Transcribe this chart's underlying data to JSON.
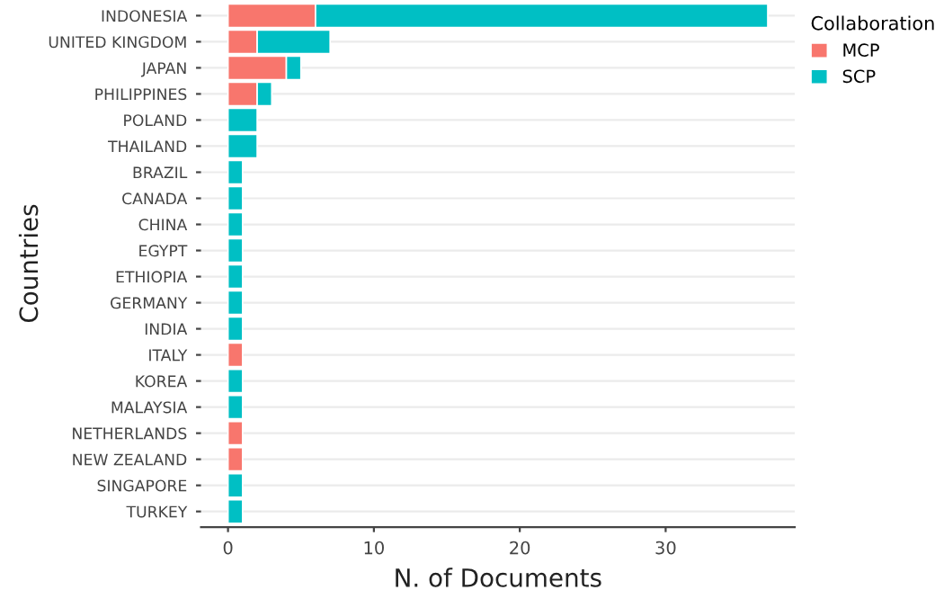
{
  "chart_data": {
    "type": "bar",
    "orientation": "horizontal",
    "stacked": true,
    "xlabel": "N. of Documents",
    "ylabel": "Countries",
    "legend_title": "Collaboration",
    "legend": "right",
    "grid": "y",
    "categories": [
      "INDONESIA",
      "UNITED KINGDOM",
      "JAPAN",
      "PHILIPPINES",
      "POLAND",
      "THAILAND",
      "BRAZIL",
      "CANADA",
      "CHINA",
      "EGYPT",
      "ETHIOPIA",
      "GERMANY",
      "INDIA",
      "ITALY",
      "KOREA",
      "MALAYSIA",
      "NETHERLANDS",
      "NEW ZEALAND",
      "SINGAPORE",
      "TURKEY"
    ],
    "series": [
      {
        "name": "MCP",
        "color": "#f8766d",
        "values": [
          6,
          2,
          4,
          2,
          null,
          null,
          null,
          null,
          null,
          null,
          null,
          null,
          null,
          1,
          null,
          null,
          1,
          1,
          null,
          null
        ]
      },
      {
        "name": "SCP",
        "color": "#00bfc4",
        "values": [
          31,
          5,
          1,
          1,
          2,
          2,
          1,
          1,
          1,
          1,
          1,
          1,
          1,
          null,
          1,
          1,
          null,
          null,
          1,
          1
        ]
      }
    ],
    "xlim": [
      -1.85,
      38.85
    ],
    "xticks": [
      0,
      10,
      20,
      30
    ]
  }
}
